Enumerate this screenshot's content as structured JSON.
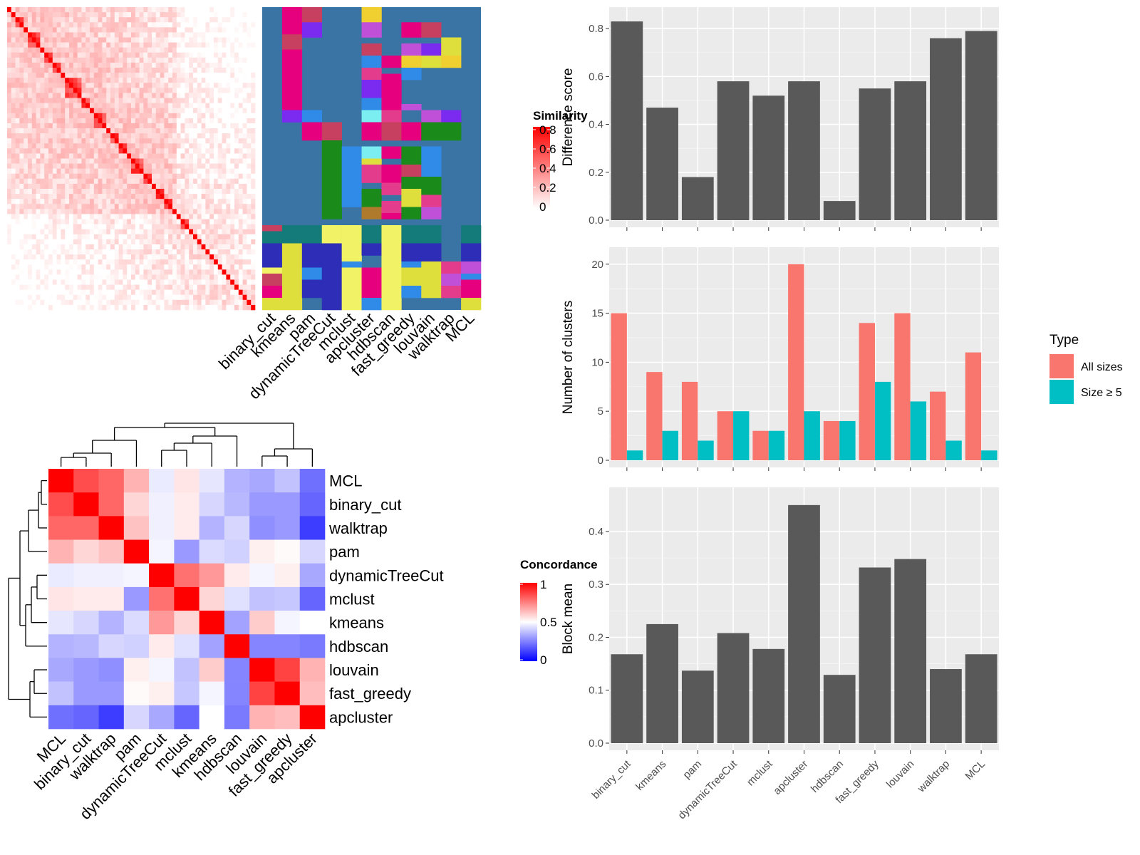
{
  "methods": [
    "binary_cut",
    "kmeans",
    "pam",
    "dynamicTreeCut",
    "mclust",
    "apcluster",
    "hdbscan",
    "fast_greedy",
    "louvain",
    "walktrap",
    "MCL"
  ],
  "colors": {
    "bar_dark": "#595959",
    "panel_bg": "#ebebeb",
    "grid": "#ffffff",
    "all_sizes": "#f8766d",
    "size_ge5": "#00bfc4",
    "cluster_base": "#3a74a4",
    "cluster_palette": [
      "#e6007e",
      "#c7405f",
      "#7b2af0",
      "#2f8ae8",
      "#1a8a1a",
      "#f2f266",
      "#2d2db8",
      "#147a7a",
      "#f0d030",
      "#c050d8",
      "#e43c8c",
      "#dede3c",
      "#b07a2c",
      "#7aeef0",
      "#6a8a2c"
    ]
  },
  "similarity_legend": {
    "title": "Similarity",
    "ticks": [
      "0",
      "0.2",
      "0.4",
      "0.6",
      "0.8"
    ]
  },
  "concordance_legend": {
    "title": "Concordance",
    "ticks": [
      "0",
      "0.5",
      "1"
    ]
  },
  "heatmap_order": [
    "MCL",
    "binary_cut",
    "walktrap",
    "pam",
    "dynamicTreeCut",
    "mclust",
    "kmeans",
    "hdbscan",
    "louvain",
    "fast_greedy",
    "apcluster"
  ],
  "chart_data": [
    {
      "type": "heatmap",
      "name": "similarity_matrix",
      "n_terms": 60,
      "diagonal_value": 0.85,
      "off_diagonal_range": [
        0,
        0.3
      ],
      "legend": "Similarity"
    },
    {
      "type": "heatmap",
      "name": "cluster_assignments",
      "columns": [
        "binary_cut",
        "kmeans",
        "pam",
        "dynamicTreeCut",
        "mclust",
        "apcluster",
        "hdbscan",
        "fast_greedy",
        "louvain",
        "walktrap",
        "MCL"
      ]
    },
    {
      "type": "heatmap",
      "name": "concordance",
      "rows": [
        "MCL",
        "binary_cut",
        "walktrap",
        "pam",
        "dynamicTreeCut",
        "mclust",
        "kmeans",
        "hdbscan",
        "louvain",
        "fast_greedy",
        "apcluster"
      ],
      "columns": [
        "MCL",
        "binary_cut",
        "walktrap",
        "pam",
        "dynamicTreeCut",
        "mclust",
        "kmeans",
        "hdbscan",
        "louvain",
        "fast_greedy",
        "apcluster"
      ],
      "values": [
        [
          1.0,
          0.85,
          0.8,
          0.65,
          0.46,
          0.55,
          0.45,
          0.35,
          0.33,
          0.38,
          0.22
        ],
        [
          0.85,
          1.0,
          0.8,
          0.58,
          0.47,
          0.54,
          0.42,
          0.36,
          0.3,
          0.3,
          0.2
        ],
        [
          0.8,
          0.8,
          1.0,
          0.62,
          0.47,
          0.54,
          0.35,
          0.42,
          0.28,
          0.3,
          0.12
        ],
        [
          0.65,
          0.58,
          0.62,
          1.0,
          0.48,
          0.3,
          0.43,
          0.41,
          0.53,
          0.51,
          0.42
        ],
        [
          0.46,
          0.47,
          0.47,
          0.48,
          1.0,
          0.78,
          0.7,
          0.54,
          0.48,
          0.53,
          0.33
        ],
        [
          0.55,
          0.54,
          0.54,
          0.3,
          0.78,
          1.0,
          0.58,
          0.44,
          0.38,
          0.39,
          0.2
        ],
        [
          0.45,
          0.42,
          0.35,
          0.43,
          0.7,
          0.58,
          1.0,
          0.32,
          0.6,
          0.48,
          0.5
        ],
        [
          0.35,
          0.36,
          0.42,
          0.41,
          0.54,
          0.44,
          0.32,
          1.0,
          0.26,
          0.26,
          0.24
        ],
        [
          0.33,
          0.3,
          0.28,
          0.53,
          0.48,
          0.38,
          0.6,
          0.26,
          1.0,
          0.87,
          0.65
        ],
        [
          0.38,
          0.3,
          0.3,
          0.51,
          0.53,
          0.39,
          0.48,
          0.26,
          0.87,
          1.0,
          0.63
        ],
        [
          0.22,
          0.2,
          0.12,
          0.42,
          0.33,
          0.2,
          0.5,
          0.24,
          0.65,
          0.63,
          1.0
        ]
      ],
      "legend": "Concordance"
    },
    {
      "type": "bar",
      "name": "difference_score",
      "categories": [
        "binary_cut",
        "kmeans",
        "pam",
        "dynamicTreeCut",
        "mclust",
        "apcluster",
        "hdbscan",
        "fast_greedy",
        "louvain",
        "walktrap",
        "MCL"
      ],
      "values": [
        0.83,
        0.47,
        0.18,
        0.58,
        0.52,
        0.58,
        0.08,
        0.55,
        0.58,
        0.76,
        0.79
      ],
      "ylabel": "Difference score",
      "ylim": [
        0,
        0.86
      ],
      "yticks": [
        0,
        0.2,
        0.4,
        0.6,
        0.8
      ],
      "ytick_labels": [
        "0.0",
        "0.2",
        "0.4",
        "0.6",
        "0.8"
      ]
    },
    {
      "type": "bar",
      "name": "number_of_clusters",
      "categories": [
        "binary_cut",
        "kmeans",
        "pam",
        "dynamicTreeCut",
        "mclust",
        "apcluster",
        "hdbscan",
        "fast_greedy",
        "louvain",
        "walktrap",
        "MCL"
      ],
      "series": [
        {
          "name": "All sizes",
          "values": [
            15,
            9,
            8,
            5,
            3,
            20,
            4,
            14,
            15,
            7,
            11
          ]
        },
        {
          "name": "Size ≥ 5",
          "values": [
            1,
            3,
            2,
            5,
            3,
            5,
            4,
            8,
            6,
            2,
            1
          ]
        }
      ],
      "ylabel": "Number of clusters",
      "ylim": [
        0,
        21
      ],
      "yticks": [
        0,
        5,
        10,
        15,
        20
      ],
      "ytick_labels": [
        "0",
        "5",
        "10",
        "15",
        "20"
      ],
      "legend_title": "Type",
      "legend_position": "right"
    },
    {
      "type": "bar",
      "name": "block_mean",
      "categories": [
        "binary_cut",
        "kmeans",
        "pam",
        "dynamicTreeCut",
        "mclust",
        "apcluster",
        "hdbscan",
        "fast_greedy",
        "louvain",
        "walktrap",
        "MCL"
      ],
      "values": [
        0.168,
        0.225,
        0.137,
        0.208,
        0.178,
        0.45,
        0.129,
        0.332,
        0.348,
        0.14,
        0.168
      ],
      "ylabel": "Block mean",
      "ylim": [
        0,
        0.47
      ],
      "yticks": [
        0,
        0.1,
        0.2,
        0.3,
        0.4
      ],
      "ytick_labels": [
        "0.0",
        "0.1",
        "0.2",
        "0.3",
        "0.4"
      ]
    }
  ]
}
